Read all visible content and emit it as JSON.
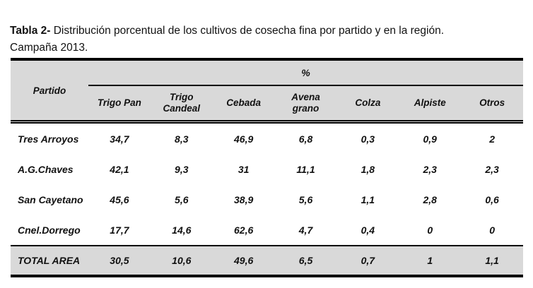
{
  "caption": {
    "label": "Tabla 2-",
    "text": " Distribución porcentual de los cultivos de cosecha fina por partido y en la región.",
    "line2": "Campaña 2013."
  },
  "table": {
    "corner_header": "Partido",
    "group_header": "%",
    "columns": [
      "Trigo Pan",
      "Trigo Candeal",
      "Cebada",
      "Avena grano",
      "Colza",
      "Alpiste",
      "Otros"
    ],
    "rows": [
      {
        "label": "Tres Arroyos",
        "values": [
          "34,7",
          "8,3",
          "46,9",
          "6,8",
          "0,3",
          "0,9",
          "2"
        ]
      },
      {
        "label": "A.G.Chaves",
        "values": [
          "42,1",
          "9,3",
          "31",
          "11,1",
          "1,8",
          "2,3",
          "2,3"
        ]
      },
      {
        "label": "San Cayetano",
        "values": [
          "45,6",
          "5,6",
          "38,9",
          "5,6",
          "1,1",
          "2,8",
          "0,6"
        ]
      },
      {
        "label": "Cnel.Dorrego",
        "values": [
          "17,7",
          "14,6",
          "62,6",
          "4,7",
          "0,4",
          "0",
          "0"
        ]
      }
    ],
    "total_row": {
      "label": "TOTAL AREA",
      "values": [
        "30,5",
        "10,6",
        "49,6",
        "6,5",
        "0,7",
        "1",
        "1,1"
      ]
    }
  },
  "colors": {
    "header_bg": "#d9d9d9",
    "border": "#000000",
    "text": "#111111"
  }
}
